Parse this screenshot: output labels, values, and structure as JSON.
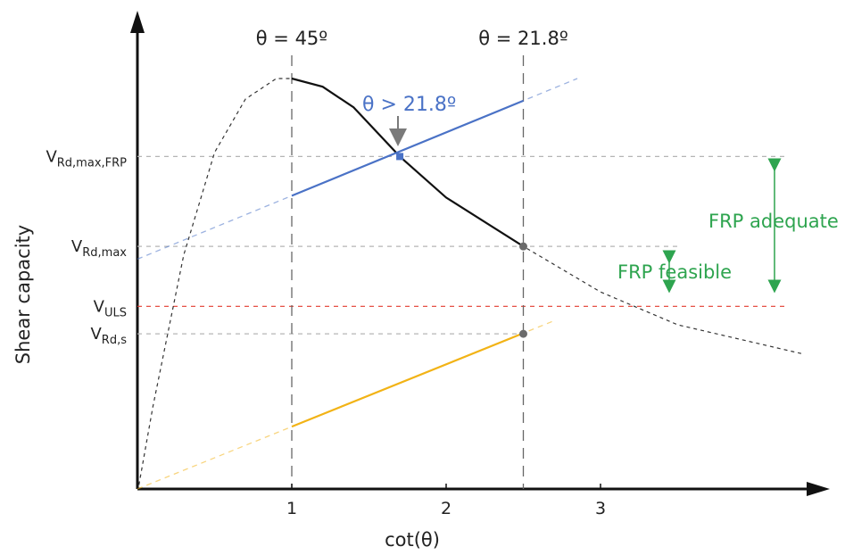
{
  "chart_data": {
    "type": "line",
    "xlabel": "cot(θ)",
    "ylabel": "Shear capacity",
    "xticks": [
      "1",
      "2",
      "3"
    ],
    "xlim": [
      0,
      4.3
    ],
    "ylim": [
      0,
      1
    ],
    "theta_markers": [
      {
        "x": 1.0,
        "label": "θ = 45º"
      },
      {
        "x": 2.5,
        "label": "θ = 21.8º"
      }
    ],
    "levels": [
      {
        "key": "frp",
        "base": "V",
        "sub": "Rd,max,FRP",
        "y": 0.81,
        "color": "#4a72c6"
      },
      {
        "key": "rdmax",
        "base": "V",
        "sub": "Rd,max",
        "y": 0.591,
        "color": "#222222"
      },
      {
        "key": "uls",
        "base": "V",
        "sub": "ULS",
        "y": 0.445,
        "color": "#e33b2f"
      },
      {
        "key": "rds",
        "base": "V",
        "sub": "Rd,s",
        "y": 0.378,
        "color": "#222222"
      }
    ],
    "series": [
      {
        "kind": "v_rd_max_curve",
        "x": [
          0.01,
          0.1,
          0.3,
          0.5,
          0.7,
          0.9,
          1.0,
          1.2,
          1.4,
          1.7,
          2.0,
          2.5,
          3.0,
          3.5,
          4.3
        ],
        "y": [
          0.01,
          0.2,
          0.57,
          0.82,
          0.95,
          1.0,
          1.0,
          0.98,
          0.93,
          0.81,
          0.71,
          0.591,
          0.48,
          0.4,
          0.33
        ],
        "solid_range": [
          1.0,
          2.5
        ],
        "color": "#111111"
      },
      {
        "kind": "v_rd_max_frp_line",
        "x": [
          0.0,
          2.85
        ],
        "y": [
          0.56,
          1.0
        ],
        "solid_range": [
          1.0,
          2.5
        ],
        "color": "#4a72c6"
      },
      {
        "kind": "v_rd_s_line",
        "x": [
          0.0,
          2.7
        ],
        "y": [
          0.0,
          0.41
        ],
        "solid_range": [
          1.0,
          2.5
        ],
        "color": "#f2b316"
      }
    ],
    "points": [
      {
        "x": 1.7,
        "y": 0.81,
        "color": "#4a72c6",
        "shape": "square"
      },
      {
        "x": 2.5,
        "y": 0.591,
        "color": "#6b6b6b",
        "shape": "circle"
      },
      {
        "x": 2.5,
        "y": 0.378,
        "color": "#6b6b6b",
        "shape": "circle"
      }
    ],
    "annotations": [
      {
        "key": "theta_gt",
        "text": "θ > 21.8º",
        "color": "#4a72c6"
      },
      {
        "key": "frp_feasible",
        "text": "FRP feasible",
        "color": "#2ea44f"
      },
      {
        "key": "frp_adequate",
        "text": "FRP adequate",
        "color": "#2ea44f"
      }
    ]
  }
}
